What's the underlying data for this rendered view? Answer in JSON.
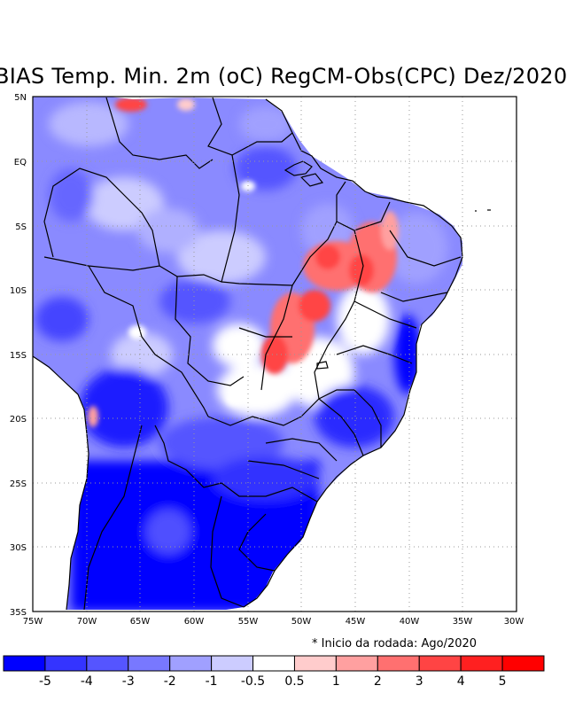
{
  "title": "BIAS Temp. Min. 2m (oC) RegCM-Obs(CPC) Dez/2020",
  "note": "* Inicio da rodada: Ago/2020",
  "lat_labels": [
    "5N",
    "EQ",
    "5S",
    "10S",
    "15S",
    "20S",
    "25S",
    "30S",
    "35S"
  ],
  "lon_labels": [
    "75W",
    "70W",
    "65W",
    "60W",
    "55W",
    "50W",
    "45W",
    "40W",
    "35W",
    "30W"
  ],
  "colorbar": {
    "colors": [
      "#0000ff",
      "#3434ff",
      "#5555ff",
      "#7878ff",
      "#a0a0ff",
      "#ccccff",
      "#ffffff",
      "#ffcccc",
      "#ffa0a0",
      "#ff7070",
      "#ff4444",
      "#ff2020",
      "#ff0000"
    ],
    "labels": [
      "-5",
      "-4",
      "-3",
      "-2",
      "-1",
      "-0.5",
      "0.5",
      "1",
      "2",
      "3",
      "4",
      "5"
    ]
  }
}
